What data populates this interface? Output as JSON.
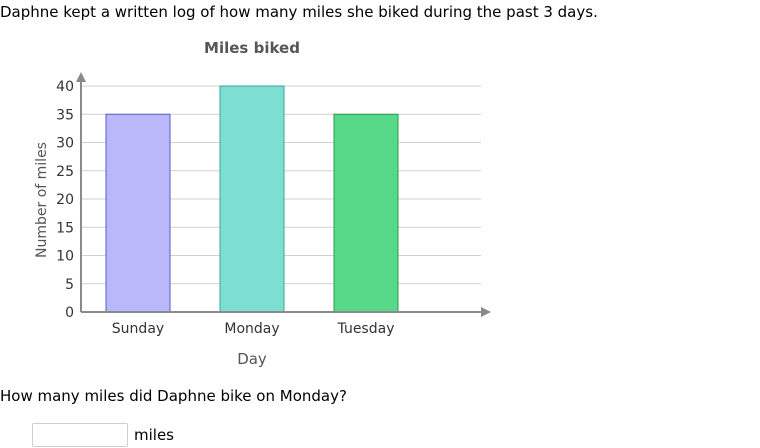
{
  "problem": {
    "intro": "Daphne kept a written log of how many miles she biked during the past 3 days.",
    "question": "How many miles did Daphne bike on Monday?",
    "answer_value": "",
    "answer_placeholder": "",
    "unit": "miles"
  },
  "chart_data": {
    "type": "bar",
    "title": "Miles biked",
    "xlabel": "Day",
    "ylabel": "Number of miles",
    "categories": [
      "Sunday",
      "Monday",
      "Tuesday"
    ],
    "values": [
      35,
      40,
      35
    ],
    "ylim": [
      0,
      40
    ],
    "yticks": [
      "0",
      "5",
      "10",
      "15",
      "20",
      "25",
      "30",
      "35",
      "40"
    ],
    "grid": true,
    "colors": {
      "bars": [
        "#b8b8fa",
        "#7ddfd2",
        "#58d98a"
      ],
      "bar_borders": [
        "#5c5ccc",
        "#3aa598",
        "#2a9a50"
      ],
      "grid": "#d0d0d0",
      "axis": "#8a8a8a",
      "title": "#555555",
      "label": "#555555"
    }
  }
}
